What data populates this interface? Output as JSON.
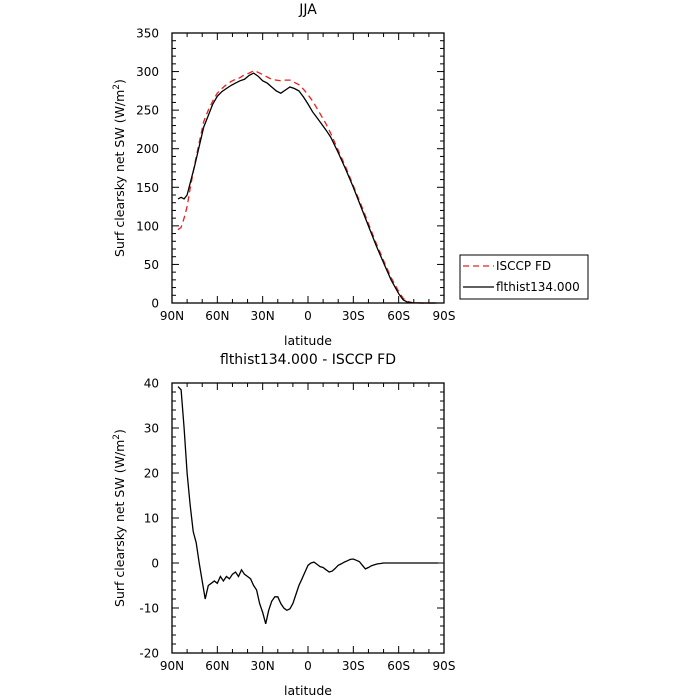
{
  "colors": {
    "background": "#ffffff",
    "axes": "#000000",
    "isccp": "#e8201e",
    "model": "#000000"
  },
  "chart_data": [
    {
      "type": "line",
      "title": "JJA",
      "xlabel": "latitude",
      "ylabel": "Surf clearsky net SW (W/m2)",
      "ylabel_parts": {
        "base": "Surf clearsky net SW (W/m",
        "sup": "2",
        "end": ")"
      },
      "xlim": [
        90,
        -90
      ],
      "ylim": [
        0,
        350
      ],
      "x_ticks": [
        90,
        60,
        30,
        0,
        -30,
        -60,
        -90
      ],
      "x_tick_labels": [
        "90N",
        "60N",
        "30N",
        "0",
        "30S",
        "60S",
        "90S"
      ],
      "y_ticks": [
        0,
        50,
        100,
        150,
        200,
        250,
        300,
        350
      ],
      "y_tick_labels": [
        "0",
        "50",
        "100",
        "150",
        "200",
        "250",
        "300",
        "350"
      ],
      "legend": "right",
      "series": [
        {
          "name": "ISCCP FD",
          "color": "#e8201e",
          "dash": true,
          "x": [
            86,
            84,
            82,
            80,
            78,
            75,
            72,
            69,
            66,
            63,
            60,
            57,
            54,
            51,
            48,
            45,
            42,
            39,
            36,
            33,
            30,
            27,
            24,
            21,
            18,
            15,
            12,
            9,
            6,
            3,
            0,
            -3,
            -6,
            -9,
            -12,
            -15,
            -20,
            -25,
            -30,
            -35,
            -40,
            -45,
            -50,
            -55,
            -60,
            -63,
            -66,
            -69,
            -72,
            -75,
            -80,
            -85
          ],
          "y": [
            95,
            98,
            110,
            125,
            148,
            180,
            208,
            235,
            250,
            262,
            272,
            278,
            283,
            287,
            290,
            292,
            296,
            298,
            301,
            299,
            296,
            293,
            290,
            289,
            288,
            289,
            289,
            286,
            283,
            277,
            270,
            262,
            252,
            242,
            232,
            220,
            198,
            176,
            152,
            128,
            103,
            78,
            55,
            33,
            15,
            6,
            2,
            0.5,
            0.2,
            0,
            0,
            0
          ]
        },
        {
          "name": "flthist134.000",
          "color": "#000000",
          "dash": false,
          "x": [
            86,
            84,
            82,
            80,
            78,
            75,
            72,
            69,
            66,
            63,
            60,
            57,
            54,
            51,
            48,
            45,
            42,
            39,
            36,
            33,
            30,
            27,
            24,
            21,
            18,
            15,
            12,
            9,
            6,
            3,
            0,
            -3,
            -6,
            -9,
            -12,
            -15,
            -20,
            -25,
            -30,
            -35,
            -40,
            -45,
            -50,
            -55,
            -60,
            -63,
            -66,
            -69,
            -72,
            -75,
            -80,
            -85
          ],
          "y": [
            135,
            137,
            135,
            140,
            155,
            178,
            203,
            228,
            243,
            258,
            268,
            274,
            278,
            282,
            285,
            288,
            290,
            295,
            298,
            294,
            288,
            285,
            280,
            275,
            272,
            276,
            280,
            278,
            275,
            267,
            258,
            248,
            240,
            232,
            224,
            215,
            195,
            173,
            150,
            125,
            100,
            75,
            52,
            30,
            12,
            4,
            1,
            0.3,
            0.1,
            0,
            0,
            0
          ]
        }
      ]
    },
    {
      "type": "line",
      "title": "flthist134.000 - ISCCP FD",
      "xlabel": "latitude",
      "ylabel": "Surf clearsky net SW (W/m2)",
      "ylabel_parts": {
        "base": "Surf clearsky net SW (W/m",
        "sup": "2",
        "end": ")"
      },
      "xlim": [
        90,
        -90
      ],
      "ylim": [
        -20,
        40
      ],
      "x_ticks": [
        90,
        60,
        30,
        0,
        -30,
        -60,
        -90
      ],
      "x_tick_labels": [
        "90N",
        "60N",
        "30N",
        "0",
        "30S",
        "60S",
        "90S"
      ],
      "y_ticks": [
        -20,
        -10,
        0,
        10,
        20,
        30,
        40
      ],
      "y_tick_labels": [
        "-20",
        "-10",
        "0",
        "10",
        "20",
        "30",
        "40"
      ],
      "series": [
        {
          "color": "#000000",
          "dash": false,
          "x": [
            86,
            84,
            82,
            80,
            78,
            76,
            74,
            72,
            70,
            68,
            66,
            64,
            62,
            60,
            58,
            56,
            54,
            52,
            50,
            48,
            46,
            44,
            42,
            40,
            38,
            36,
            34,
            32,
            30,
            28,
            26,
            24,
            22,
            20,
            18,
            16,
            14,
            12,
            10,
            8,
            6,
            4,
            2,
            0,
            -2,
            -4,
            -6,
            -8,
            -10,
            -12,
            -14,
            -16,
            -18,
            -20,
            -22,
            -24,
            -26,
            -28,
            -30,
            -32,
            -34,
            -36,
            -38,
            -40,
            -42,
            -44,
            -46,
            -48,
            -50,
            -52,
            -54,
            -56,
            -58,
            -60,
            -62,
            -64,
            -66,
            -68,
            -70,
            -72,
            -74,
            -76,
            -78,
            -80,
            -82,
            -84,
            -86
          ],
          "y": [
            39.2,
            38.5,
            30,
            20,
            13,
            7,
            4.5,
            0,
            -4,
            -8,
            -5,
            -4.5,
            -4,
            -4.5,
            -3,
            -4,
            -3,
            -3.5,
            -2.5,
            -2,
            -3,
            -1.5,
            -2.5,
            -3,
            -3.5,
            -5,
            -6,
            -9,
            -11,
            -13.5,
            -10.5,
            -8.5,
            -7.5,
            -7.5,
            -9,
            -10,
            -10.5,
            -10.2,
            -9,
            -7,
            -5,
            -3.5,
            -2,
            -0.5,
            0,
            0.2,
            -0.3,
            -0.8,
            -1,
            -1.5,
            -2,
            -1.8,
            -1.2,
            -0.5,
            -0.2,
            0.2,
            0.5,
            0.8,
            0.9,
            0.6,
            0.3,
            -0.5,
            -1.3,
            -1,
            -0.6,
            -0.4,
            -0.2,
            -0.1,
            0,
            0,
            0,
            0,
            0,
            0,
            0,
            0,
            0,
            0,
            0,
            0,
            0,
            0,
            0,
            0,
            0,
            0,
            0
          ]
        }
      ]
    }
  ]
}
